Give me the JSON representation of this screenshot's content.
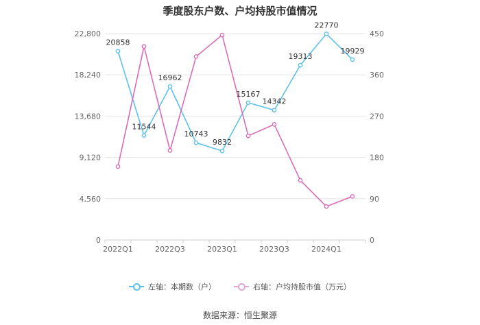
{
  "chart_data": {
    "type": "line",
    "title": "季度股东户数、户均持股市值情况",
    "categories": [
      "2022Q1",
      "2022Q2",
      "2022Q3",
      "2022Q4",
      "2023Q1",
      "2023Q2",
      "2023Q3",
      "2023Q4",
      "2024Q1",
      "2024Q2"
    ],
    "x_tick_labels": [
      "2022Q1",
      "2022Q3",
      "2023Q1",
      "2023Q3",
      "2024Q1"
    ],
    "left_axis": {
      "ylim": [
        0,
        22800
      ],
      "ticks": [
        "0",
        "4,560",
        "9,120",
        "13,680",
        "18,240",
        "22,800"
      ]
    },
    "right_axis": {
      "ylim": [
        0,
        450
      ],
      "ticks": [
        "0",
        "90",
        "180",
        "270",
        "360",
        "450"
      ]
    },
    "series": [
      {
        "name": "左轴：本期数（户）",
        "axis": "left",
        "color": "#5bc0eb",
        "values": [
          20858,
          11544,
          16962,
          10743,
          9832,
          15167,
          14342,
          19313,
          22770,
          19929
        ],
        "labels": [
          "20858",
          "11544",
          "16962",
          "10743",
          "9832",
          "15167",
          "14342",
          "19313",
          "22770",
          "19929"
        ]
      },
      {
        "name": "右轴：户均持股市值（万元）",
        "axis": "right",
        "color": "#d96cb5",
        "values": [
          160,
          422,
          195,
          400,
          447,
          227,
          252,
          130,
          73,
          95
        ]
      }
    ],
    "grid": true,
    "legend_position": "bottom"
  },
  "source": "数据来源：恒生聚源"
}
